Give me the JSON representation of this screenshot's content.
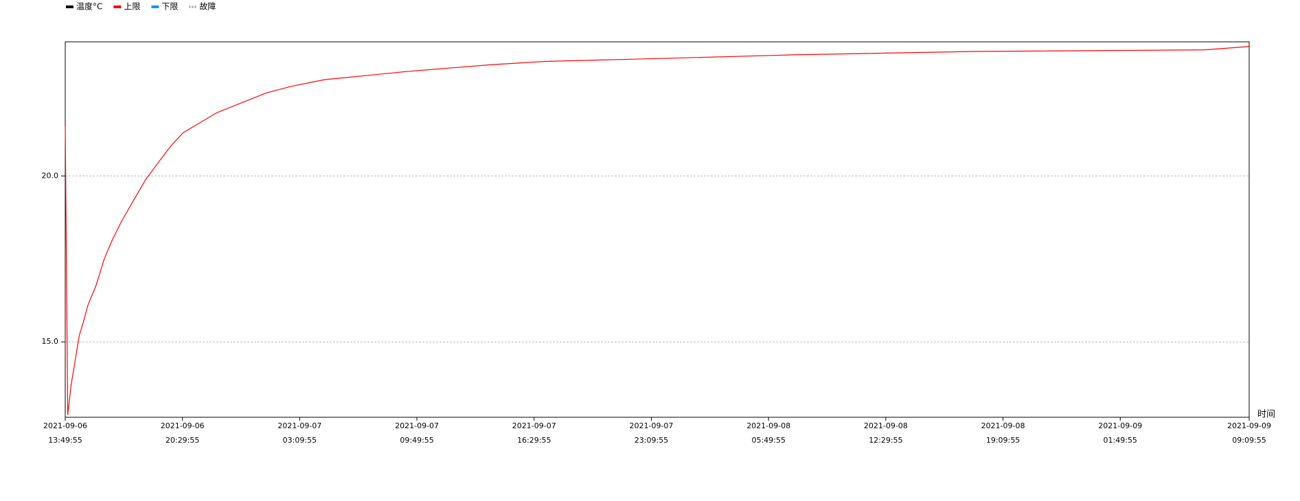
{
  "chart_data": {
    "type": "line",
    "series": [
      {
        "name": "温度°C",
        "color": "#000000"
      },
      {
        "name": "上限",
        "color": "#ff0000",
        "x": [
          "2021-09-06 13:49:55",
          "2021-09-06 13:58:25",
          "2021-09-06 14:10:00",
          "2021-09-06 14:24:00",
          "2021-09-06 14:38:00",
          "2021-09-06 14:52:00",
          "2021-09-06 15:07:00",
          "2021-09-06 15:35:00",
          "2021-09-06 16:03:00",
          "2021-09-06 16:32:00",
          "2021-09-06 17:00:00",
          "2021-09-06 17:42:00",
          "2021-09-06 18:25:00",
          "2021-09-06 19:07:00",
          "2021-09-06 19:50:00",
          "2021-09-06 20:32:00",
          "2021-09-06 21:29:00",
          "2021-09-06 22:26:00",
          "2021-09-06 23:51:00",
          "2021-09-07 01:16:00",
          "2021-09-07 02:41:00",
          "2021-09-07 04:34:00",
          "2021-09-07 06:28:00",
          "2021-09-07 09:18:00",
          "2021-09-07 11:40:00",
          "2021-09-07 14:01:00",
          "2021-09-07 17:06:00",
          "2021-09-08 00:25:00",
          "2021-09-08 07:16:00",
          "2021-09-08 17:25:00",
          "2021-09-09 06:39:00",
          "2021-09-09 09:09:55"
        ],
        "values": [
          21.5,
          12.8,
          13.7,
          14.45,
          15.2,
          15.6,
          16.1,
          16.7,
          17.5,
          18.1,
          18.6,
          19.25,
          19.9,
          20.4,
          20.9,
          21.3,
          21.6,
          21.9,
          22.2,
          22.5,
          22.7,
          22.9,
          23.0,
          23.15,
          23.25,
          23.35,
          23.45,
          23.55,
          23.65,
          23.75,
          23.8,
          23.9
        ]
      },
      {
        "name": "下限",
        "color": "#1e90ff"
      },
      {
        "name": "故障",
        "color": "#999999",
        "dash": true
      }
    ],
    "x_label": "时间",
    "xlim": [
      "2021-09-06 13:49:55",
      "2021-09-09 09:09:55"
    ],
    "xticks": [
      {
        "value": "2021-09-06 13:49:55",
        "label": "2021-09-06 13:49:55"
      },
      {
        "value": "2021-09-06 20:29:55",
        "label": "2021-09-06 20:29:55"
      },
      {
        "value": "2021-09-07 03:09:55",
        "label": "2021-09-07 03:09:55"
      },
      {
        "value": "2021-09-07 09:49:55",
        "label": "2021-09-07 09:49:55"
      },
      {
        "value": "2021-09-07 16:29:55",
        "label": "2021-09-07 16:29:55"
      },
      {
        "value": "2021-09-07 23:09:55",
        "label": "2021-09-07 23:09:55"
      },
      {
        "value": "2021-09-08 05:49:55",
        "label": "2021-09-08 05:49:55"
      },
      {
        "value": "2021-09-08 12:29:55",
        "label": "2021-09-08 12:29:55"
      },
      {
        "value": "2021-09-08 19:09:55",
        "label": "2021-09-08 19:09:55"
      },
      {
        "value": "2021-09-09 01:49:55",
        "label": "2021-09-09 01:49:55"
      },
      {
        "value": "2021-09-09 09:09:55",
        "label": "2021-09-09 09:09:55"
      }
    ],
    "ylim": [
      12.73,
      24.04
    ],
    "yticks": [
      {
        "value": 15,
        "label": "15.0"
      },
      {
        "value": 20,
        "label": "20.0"
      }
    ],
    "grid": true
  }
}
